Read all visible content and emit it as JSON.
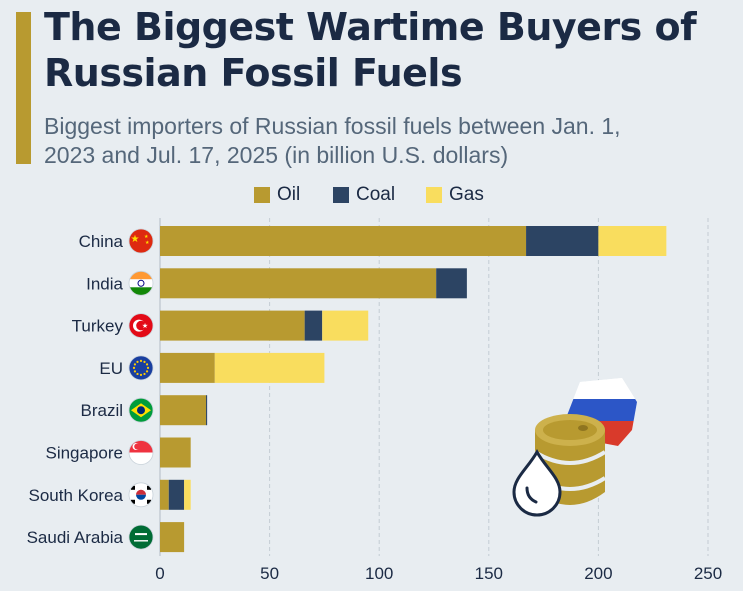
{
  "header": {
    "title": "The Biggest Wartime Buyers of Russian Fossil Fuels",
    "subtitle": "Biggest importers of Russian fossil fuels between Jan. 1, 2023 and Jul. 17, 2025 (in billion U.S. dollars)"
  },
  "colors": {
    "oil": "#b89a30",
    "coal": "#2c4463",
    "gas": "#f9dd5e",
    "accent": "#b89a30",
    "background": "#e8edf1",
    "grid": "#c4ccd4"
  },
  "legend": [
    {
      "name": "Oil",
      "color": "#b89a30"
    },
    {
      "name": "Coal",
      "color": "#2c4463"
    },
    {
      "name": "Gas",
      "color": "#f9dd5e"
    }
  ],
  "chart_data": {
    "type": "bar",
    "orientation": "horizontal",
    "stacked": true,
    "categories": [
      "China",
      "India",
      "Turkey",
      "EU",
      "Brazil",
      "Singapore",
      "South Korea",
      "Saudi Arabia"
    ],
    "flag_icons": [
      "china-flag-icon",
      "india-flag-icon",
      "turkey-flag-icon",
      "eu-flag-icon",
      "brazil-flag-icon",
      "singapore-flag-icon",
      "south-korea-flag-icon",
      "saudi-arabia-flag-icon"
    ],
    "series": [
      {
        "name": "Oil",
        "values": [
          167,
          126,
          66,
          25,
          21,
          14,
          4,
          11
        ]
      },
      {
        "name": "Coal",
        "values": [
          33,
          14,
          8,
          0,
          0.5,
          0,
          7,
          0
        ]
      },
      {
        "name": "Gas",
        "values": [
          31,
          0,
          21,
          50,
          0,
          0,
          3,
          0
        ]
      }
    ],
    "xlim": [
      0,
      250
    ],
    "xticks": [
      "0",
      "50",
      "100",
      "150",
      "200",
      "250"
    ],
    "xlabel": "",
    "ylabel": "",
    "grid": true,
    "legend_position": "top-center",
    "decoration_icons": [
      "oil-barrel-icon",
      "oil-drop-icon",
      "russia-flag-shape-icon"
    ]
  }
}
